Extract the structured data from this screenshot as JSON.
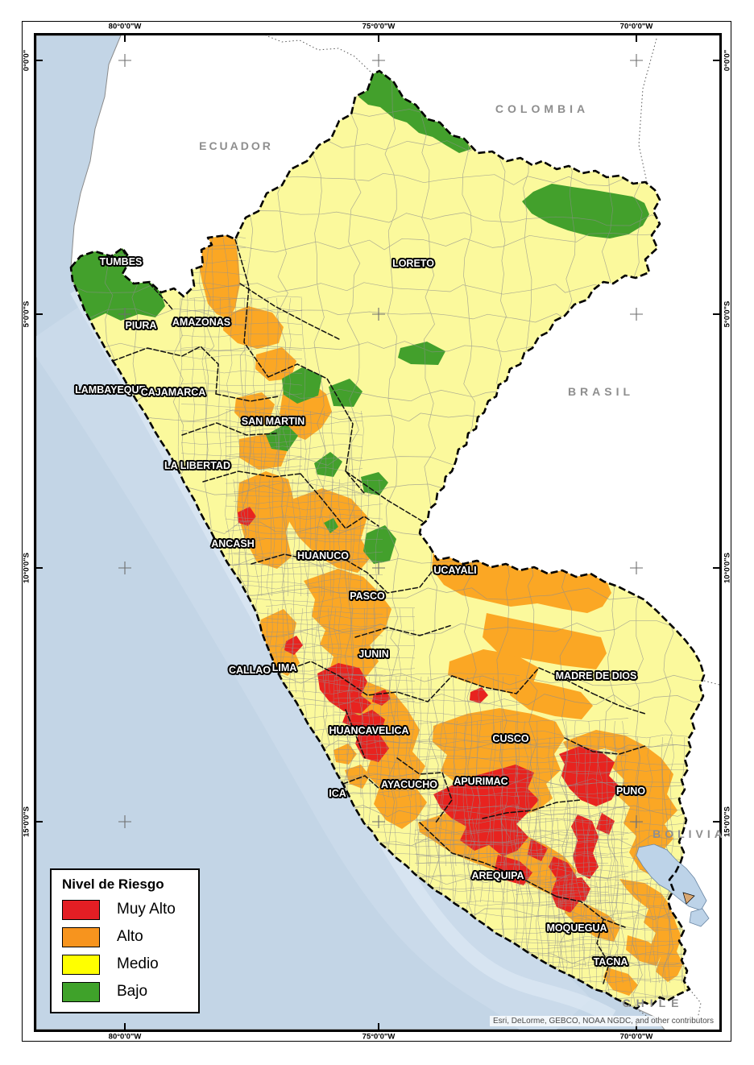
{
  "legend": {
    "title": "Nivel de Riesgo",
    "items": [
      {
        "label": "Muy Alto",
        "color": "#e31e24"
      },
      {
        "label": "Alto",
        "color": "#f7941e"
      },
      {
        "label": "Medio",
        "color": "#ffff00"
      },
      {
        "label": "Bajo",
        "color": "#3fa22a"
      }
    ]
  },
  "colors": {
    "map_muy_alto": "#e8231f",
    "map_alto": "#fba724",
    "map_medio": "#fbf99c",
    "map_bajo": "#43a02c",
    "ocean": "#c3d5e6",
    "lake": "#bdd3e8"
  },
  "departments": {
    "tumbes": "TUMBES",
    "piura": "PIURA",
    "amazonas": "AMAZONAS",
    "lambayeque": "LAMBAYEQUE",
    "cajamarca": "CAJAMARCA",
    "san_martin": "SAN MARTIN",
    "loreto": "LORETO",
    "la_libertad": "LA LIBERTAD",
    "ancash": "ANCASH",
    "huanuco": "HUANUCO",
    "ucayali": "UCAYALI",
    "pasco": "PASCO",
    "junin": "JUNIN",
    "callao": "CALLAO",
    "lima": "LIMA",
    "madre_de_dios": "MADRE DE DIOS",
    "huancavelica": "HUANCAVELICA",
    "cusco": "CUSCO",
    "ayacucho": "AYACUCHO",
    "apurimac": "APURIMAC",
    "ica": "ICA",
    "puno": "PUNO",
    "arequipa": "AREQUIPA",
    "moquegua": "MOQUEGUA",
    "tacna": "TACNA"
  },
  "countries": {
    "ecuador": "ECUADOR",
    "colombia": "COLOMBIA",
    "brasil": "BRASIL",
    "bolivia": "BOLIVIA",
    "chile": "CHILE"
  },
  "graticule": {
    "top": [
      "80°0'0\"W",
      "75°0'0\"W",
      "70°0'0\"W"
    ],
    "bottom": [
      "80°0'0\"W",
      "75°0'0\"W",
      "70°0'0\"W"
    ],
    "left": [
      "0°0'0\"",
      "5°0'0\"S",
      "10°0'0\"S",
      "15°0'0\"S"
    ],
    "right": [
      "0°0'0\"",
      "5°0'0\"S",
      "10°0'0\"S",
      "15°0'0\"S"
    ]
  },
  "attribution": "Esri, DeLorme, GEBCO, NOAA NGDC, and other contributors"
}
